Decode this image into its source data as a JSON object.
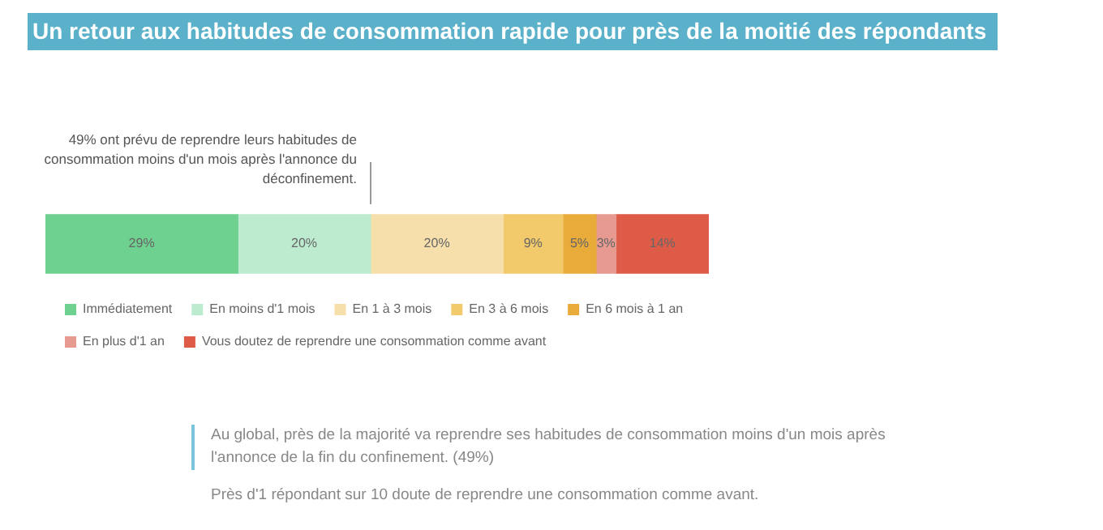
{
  "chart_data": {
    "type": "bar",
    "orientation": "horizontal",
    "stacked": true,
    "title": "Un retour aux habitudes de consommation rapide pour près de la moitié des répondants",
    "categories": [
      null
    ],
    "series": [
      {
        "name": "Immédiatement",
        "color": "#6fd18f",
        "values": [
          29
        ],
        "value_labels": [
          "29%"
        ]
      },
      {
        "name": "En moins d'1 mois",
        "color": "#bdebd0",
        "values": [
          20
        ],
        "value_labels": [
          "20%"
        ]
      },
      {
        "name": "En 1 à 3 mois",
        "color": "#f6dfaa",
        "values": [
          20
        ],
        "value_labels": [
          "20%"
        ]
      },
      {
        "name": "En 3 à 6 mois",
        "color": "#f2c96b",
        "values": [
          9
        ],
        "value_labels": [
          "9%"
        ]
      },
      {
        "name": "En 6 mois à 1 an",
        "color": "#e9ab3a",
        "values": [
          5
        ],
        "value_labels": [
          "5%"
        ]
      },
      {
        "name": "En plus d'1 an",
        "color": "#e79a8f",
        "values": [
          3
        ],
        "value_labels": [
          "3%"
        ]
      },
      {
        "name": "Vous doutez de reprendre une consommation comme avant",
        "color": "#dd5b47",
        "values": [
          14
        ],
        "value_labels": [
          "14%"
        ]
      }
    ],
    "legend": "bottom left",
    "annotations": [
      "49% ont prévu de reprendre leurs habitudes de consommation moins d'un mois après l'annonce du déconfinement.",
      "Au global, près de la majorité va reprendre ses habitudes de consommation moins d'un mois après l'annonce de la fin du confinement. (49%)",
      "Près d'1 répondant sur 10 doute de reprendre une consommation comme avant."
    ]
  }
}
